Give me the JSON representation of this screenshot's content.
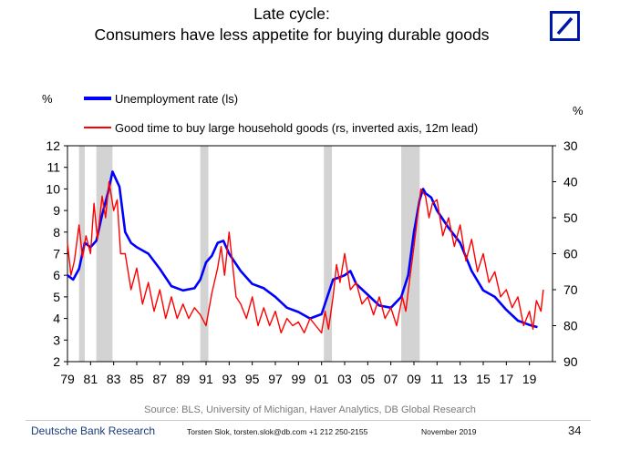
{
  "header": {
    "title_line1": "Late cycle:",
    "title_line2": "Consumers have less appetite for buying durable goods"
  },
  "logo": {
    "name": "deutsche-bank-logo",
    "color": "#0018a8"
  },
  "footer": {
    "source": "Source: BLS, University of Michigan, Haver Analytics, DB Global Research",
    "brand": "Deutsche Bank Research",
    "author": "Torsten Slok, torsten.slok@db.com +1 212 250-2155",
    "date": "November 2019",
    "page": "34"
  },
  "chart_data": {
    "type": "line",
    "title": "Consumers have less appetite for buying durable goods",
    "left_axis_label": "%",
    "right_axis_label": "%",
    "left_ylim": [
      2,
      12
    ],
    "left_ticks": [
      "2",
      "3",
      "4",
      "5",
      "6",
      "7",
      "8",
      "9",
      "10",
      "11",
      "12"
    ],
    "right_ylim": [
      30,
      90
    ],
    "right_inverted": true,
    "right_ticks": [
      "30",
      "40",
      "50",
      "60",
      "70",
      "80",
      "90"
    ],
    "x_range": [
      1979,
      2021
    ],
    "x_ticks": [
      "79",
      "81",
      "83",
      "85",
      "87",
      "89",
      "91",
      "93",
      "95",
      "97",
      "99",
      "01",
      "03",
      "05",
      "07",
      "09",
      "11",
      "13",
      "15",
      "17",
      "19"
    ],
    "x_tick_years": [
      1979,
      1981,
      1983,
      1985,
      1987,
      1989,
      1991,
      1993,
      1995,
      1997,
      1999,
      2001,
      2003,
      2005,
      2007,
      2009,
      2011,
      2013,
      2015,
      2017,
      2019
    ],
    "recessions": [
      [
        1980.0,
        1980.5
      ],
      [
        1981.5,
        1982.9
      ],
      [
        1990.5,
        1991.2
      ],
      [
        2001.2,
        2001.9
      ],
      [
        2007.9,
        2009.5
      ]
    ],
    "series": [
      {
        "name": "Unemployment rate (ls)",
        "axis": "left",
        "color": "#0000ff",
        "x": [
          1979,
          1979.5,
          1980,
          1980.5,
          1981,
          1981.5,
          1982,
          1982.5,
          1982.9,
          1983.5,
          1984,
          1984.5,
          1985,
          1986,
          1987,
          1988,
          1989,
          1990,
          1990.5,
          1991,
          1991.5,
          1992,
          1992.5,
          1993,
          1994,
          1995,
          1996,
          1997,
          1998,
          1999,
          2000,
          2001,
          2001.5,
          2002,
          2002.5,
          2003,
          2003.5,
          2004,
          2005,
          2006,
          2007,
          2007.9,
          2008.5,
          2009,
          2009.5,
          2009.8,
          2010,
          2010.5,
          2011,
          2012,
          2013,
          2014,
          2015,
          2016,
          2017,
          2018,
          2019,
          2019.7
        ],
        "y": [
          6.0,
          5.8,
          6.3,
          7.5,
          7.3,
          7.6,
          8.8,
          9.8,
          10.8,
          10.1,
          8.0,
          7.5,
          7.3,
          7.0,
          6.3,
          5.5,
          5.3,
          5.4,
          5.8,
          6.6,
          6.9,
          7.5,
          7.6,
          7.0,
          6.2,
          5.6,
          5.4,
          5.0,
          4.5,
          4.3,
          4.0,
          4.2,
          5.0,
          5.8,
          5.9,
          6.0,
          6.2,
          5.6,
          5.1,
          4.6,
          4.5,
          5.0,
          6.0,
          8.0,
          9.5,
          10.0,
          9.8,
          9.6,
          9.0,
          8.2,
          7.5,
          6.2,
          5.3,
          5.0,
          4.4,
          3.9,
          3.7,
          3.6
        ]
      },
      {
        "name": "Good time to buy large household goods (rs, inverted axis, 12m lead)",
        "axis": "right",
        "color": "#ff0000",
        "x": [
          1979,
          1979.3,
          1979.6,
          1980,
          1980.3,
          1980.6,
          1981,
          1981.3,
          1981.6,
          1982,
          1982.3,
          1982.6,
          1983,
          1983.3,
          1983.6,
          1984,
          1984.5,
          1985,
          1985.5,
          1986,
          1986.5,
          1987,
          1987.5,
          1988,
          1988.5,
          1989,
          1989.5,
          1990,
          1990.5,
          1991,
          1991.5,
          1992,
          1992.3,
          1992.6,
          1993,
          1993.3,
          1993.6,
          1994,
          1994.5,
          1995,
          1995.5,
          1996,
          1996.5,
          1997,
          1997.5,
          1998,
          1998.5,
          1999,
          1999.5,
          2000,
          2000.5,
          2001,
          2001.3,
          2001.6,
          2002,
          2002.3,
          2002.6,
          2003,
          2003.5,
          2004,
          2004.5,
          2005,
          2005.5,
          2006,
          2006.5,
          2007,
          2007.5,
          2008,
          2008.3,
          2008.6,
          2009,
          2009.3,
          2009.6,
          2010,
          2010.3,
          2010.6,
          2011,
          2011.5,
          2012,
          2012.5,
          2013,
          2013.5,
          2014,
          2014.5,
          2015,
          2015.5,
          2016,
          2016.5,
          2017,
          2017.5,
          2018,
          2018.5,
          2019,
          2019.3,
          2019.6,
          2020,
          2020.2
        ],
        "y": [
          57,
          66,
          62,
          52,
          61,
          55,
          60,
          46,
          56,
          44,
          50,
          40,
          48,
          45,
          60,
          60,
          70,
          64,
          74,
          68,
          76,
          70,
          78,
          72,
          78,
          74,
          78,
          75,
          77,
          80,
          71,
          64,
          58,
          66,
          54,
          63,
          72,
          74,
          78,
          72,
          80,
          75,
          80,
          76,
          82,
          78,
          80,
          79,
          82,
          78,
          80,
          82,
          76,
          81,
          72,
          63,
          68,
          60,
          70,
          68,
          74,
          72,
          77,
          72,
          78,
          75,
          80,
          72,
          76,
          68,
          58,
          50,
          42,
          44,
          50,
          46,
          45,
          55,
          50,
          58,
          52,
          62,
          56,
          65,
          60,
          68,
          65,
          72,
          70,
          75,
          72,
          80,
          76,
          81,
          73,
          76,
          70
        ]
      }
    ]
  }
}
